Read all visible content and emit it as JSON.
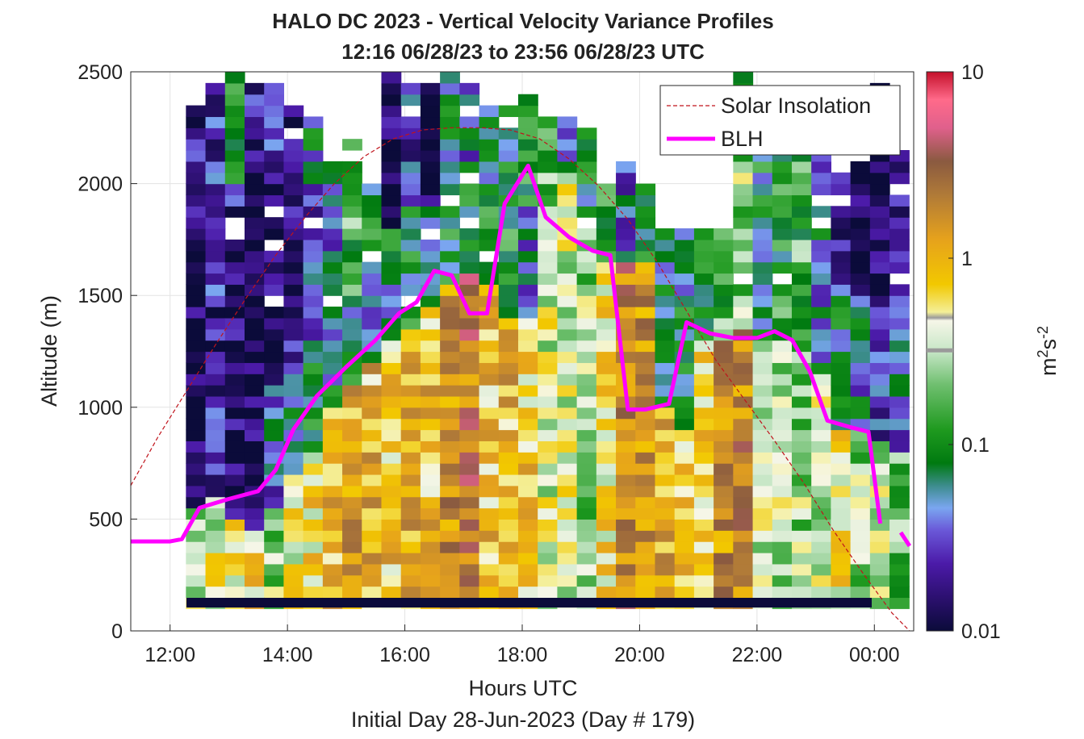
{
  "chart_data": {
    "type": "heatmap",
    "title": "HALO DC 2023 - Vertical Velocity Variance Profiles",
    "subtitle": "12:16 06/28/23 to 23:56 06/28/23  UTC",
    "xlabel": "Hours UTC",
    "ylabel": "Altitude (m)",
    "footnote": "Initial Day 28-Jun-2023 (Day # 179)",
    "xlim": [
      11.33,
      24.67
    ],
    "ylim": [
      0,
      2500
    ],
    "x_tick_values": [
      12,
      14,
      16,
      18,
      20,
      22,
      24
    ],
    "x_tick_labels": [
      "12:00",
      "14:00",
      "16:00",
      "18:00",
      "20:00",
      "22:00",
      "00:00"
    ],
    "y_ticks": [
      0,
      500,
      1000,
      1500,
      2000,
      2500
    ],
    "grid": true,
    "legend_position": "top-right",
    "colorbar": {
      "scale": "log",
      "range": [
        0.01,
        10
      ],
      "tick_values": [
        0.01,
        0.1,
        1,
        10
      ],
      "tick_labels": [
        "0.01",
        "0.1",
        "1",
        "10"
      ],
      "label_base": "m",
      "label_sup1": "2",
      "label_mid": "s",
      "label_sup2": "-2",
      "marker_value": 0.32
    },
    "heatmap_profiles": {
      "time_start": 12.27,
      "time_step": 0.333,
      "alt_bottom": 100,
      "alt_step": 50,
      "comment_levels": "per-column variance profile: [upper limit m, value m2 s-2] segments from bottom",
      "columns": [
        {
          "top": 2350,
          "segments": [
            [
              550,
              0.3
            ],
            [
              1800,
              0.012
            ],
            [
              2350,
              0.02
            ]
          ]
        },
        {
          "top": 2450,
          "segments": [
            [
              600,
              0.4
            ],
            [
              1000,
              0.02
            ],
            [
              1500,
              0.018
            ],
            [
              2450,
              0.022
            ]
          ]
        },
        {
          "top": 2500,
          "segments": [
            [
              500,
              0.6
            ],
            [
              1500,
              0.013
            ],
            [
              2000,
              0.02
            ],
            [
              2500,
              0.08
            ]
          ]
        },
        {
          "top": 2450,
          "segments": [
            [
              450,
              0.7
            ],
            [
              1000,
              0.015
            ],
            [
              2000,
              0.012
            ],
            [
              2450,
              0.02
            ]
          ]
        },
        {
          "top": 2450,
          "segments": [
            [
              550,
              0.25
            ],
            [
              1100,
              0.04
            ],
            [
              2100,
              0.015
            ],
            [
              2450,
              0.025
            ]
          ]
        },
        {
          "top": 2350,
          "segments": [
            [
              700,
              0.5
            ],
            [
              1200,
              0.05
            ],
            [
              1900,
              0.02
            ],
            [
              2350,
              0.012
            ]
          ]
        },
        {
          "top": 2300,
          "segments": [
            [
              800,
              0.6
            ],
            [
              1300,
              0.08
            ],
            [
              2000,
              0.03
            ],
            [
              2300,
              0.06
            ]
          ]
        },
        {
          "top": 2100,
          "segments": [
            [
              1000,
              0.9
            ],
            [
              1400,
              0.06
            ],
            [
              2100,
              0.05
            ]
          ]
        },
        {
          "top": 2200,
          "segments": [
            [
              1100,
              1.2
            ],
            [
              1500,
              0.08
            ],
            [
              2200,
              0.15
            ]
          ]
        },
        {
          "top": 2000,
          "segments": [
            [
              1200,
              1.0
            ],
            [
              1600,
              0.06
            ],
            [
              2000,
              0.1
            ]
          ]
        },
        {
          "top": 2500,
          "segments": [
            [
              1300,
              0.8
            ],
            [
              1800,
              0.07
            ],
            [
              2500,
              0.015
            ]
          ]
        },
        {
          "top": 2450,
          "segments": [
            [
              1350,
              1.1
            ],
            [
              1900,
              0.08
            ],
            [
              2450,
              0.03
            ]
          ]
        },
        {
          "top": 2450,
          "segments": [
            [
              1450,
              0.9
            ],
            [
              1900,
              0.05
            ],
            [
              2450,
              0.012
            ]
          ]
        },
        {
          "top": 2500,
          "segments": [
            [
              1550,
              1.5
            ],
            [
              2000,
              0.1
            ],
            [
              2500,
              0.06
            ]
          ]
        },
        {
          "top": 2450,
          "segments": [
            [
              1600,
              2.2
            ],
            [
              2100,
              0.08
            ],
            [
              2450,
              0.05
            ]
          ]
        },
        {
          "top": 2400,
          "segments": [
            [
              1550,
              0.8
            ],
            [
              2000,
              0.12
            ],
            [
              2400,
              0.08
            ]
          ]
        },
        {
          "top": 2350,
          "segments": [
            [
              1400,
              1.0
            ],
            [
              2000,
              0.1
            ],
            [
              2350,
              0.09
            ]
          ]
        },
        {
          "top": 2400,
          "segments": [
            [
              1400,
              0.7
            ],
            [
              1900,
              0.04
            ],
            [
              2400,
              0.1
            ]
          ]
        },
        {
          "top": 2300,
          "segments": [
            [
              1900,
              0.35
            ],
            [
              2300,
              0.2
            ]
          ]
        },
        {
          "top": 2350,
          "segments": [
            [
              2050,
              0.35
            ],
            [
              2350,
              0.06
            ]
          ]
        },
        {
          "top": 2250,
          "segments": [
            [
              1800,
              0.25
            ],
            [
              2250,
              0.08
            ]
          ]
        },
        {
          "top": 2000,
          "segments": [
            [
              1650,
              0.6
            ],
            [
              2000,
              0.1
            ]
          ]
        },
        {
          "top": 2100,
          "segments": [
            [
              1650,
              2.0
            ],
            [
              2100,
              0.04
            ]
          ]
        },
        {
          "top": 2000,
          "segments": [
            [
              1650,
              1.5
            ],
            [
              2000,
              0.08
            ]
          ]
        },
        {
          "top": 1800,
          "segments": [
            [
              1000,
              1.0
            ],
            [
              1800,
              0.08
            ]
          ]
        },
        {
          "top": 1800,
          "segments": [
            [
              900,
              0.8
            ],
            [
              1800,
              0.07
            ]
          ]
        },
        {
          "top": 1800,
          "segments": [
            [
              1300,
              0.6
            ],
            [
              1800,
              0.1
            ]
          ]
        },
        {
          "top": 1800,
          "segments": [
            [
              1300,
              1.5
            ],
            [
              1800,
              0.15
            ]
          ]
        },
        {
          "top": 2500,
          "segments": [
            [
              1350,
              1.8
            ],
            [
              2100,
              0.25
            ],
            [
              2500,
              0.1
            ]
          ]
        },
        {
          "top": 2200,
          "segments": [
            [
              1300,
              0.4
            ],
            [
              2200,
              0.08
            ]
          ]
        },
        {
          "top": 2200,
          "segments": [
            [
              1300,
              0.3
            ],
            [
              2200,
              0.12
            ]
          ]
        },
        {
          "top": 2200,
          "segments": [
            [
              1250,
              0.25
            ],
            [
              2200,
              0.15
            ]
          ]
        },
        {
          "top": 2200,
          "segments": [
            [
              1150,
              0.35
            ],
            [
              2200,
              0.05
            ]
          ]
        },
        {
          "top": 2100,
          "segments": [
            [
              900,
              0.5
            ],
            [
              1500,
              0.08
            ],
            [
              2100,
              0.02
            ]
          ]
        },
        {
          "top": 2100,
          "segments": [
            [
              900,
              0.25
            ],
            [
              1500,
              0.05
            ],
            [
              2100,
              0.015
            ]
          ]
        },
        {
          "top": 2450,
          "segments": [
            [
              850,
              0.3
            ],
            [
              1500,
              0.03
            ],
            [
              2450,
              0.012
            ]
          ]
        },
        {
          "top": 2150,
          "segments": [
            [
              800,
              0.2
            ],
            [
              1500,
              0.04
            ],
            [
              2150,
              0.02
            ]
          ]
        }
      ]
    },
    "series": [
      {
        "name": "Solar Insolation",
        "x": [
          11.33,
          11.8,
          12.3,
          12.8,
          13.3,
          13.8,
          14.3,
          14.8,
          15.3,
          15.8,
          16.3,
          16.8,
          17.3,
          17.8,
          18.3,
          18.8,
          19.3,
          19.8,
          20.3,
          20.8,
          21.3,
          21.8,
          22.3,
          22.8,
          23.3,
          23.8,
          24.3,
          24.6
        ],
        "y": [
          650,
          870,
          1080,
          1290,
          1490,
          1680,
          1850,
          2000,
          2120,
          2200,
          2240,
          2250,
          2250,
          2240,
          2200,
          2110,
          1990,
          1840,
          1650,
          1430,
          1210,
          1030,
          850,
          660,
          450,
          260,
          80,
          0
        ]
      },
      {
        "name": "BLH",
        "x": [
          11.33,
          12.0,
          12.2,
          12.5,
          13.0,
          13.5,
          13.8,
          14.1,
          14.5,
          15.0,
          15.5,
          15.9,
          16.2,
          16.5,
          16.8,
          17.1,
          17.4,
          17.7,
          18.1,
          18.4,
          18.8,
          19.2,
          19.5,
          19.8,
          20.1,
          20.5,
          20.8,
          21.2,
          21.6,
          22.0,
          22.3,
          22.6,
          22.9,
          23.2,
          23.6,
          23.9,
          24.1
        ],
        "y": [
          400,
          400,
          410,
          550,
          590,
          625,
          720,
          900,
          1050,
          1180,
          1300,
          1420,
          1470,
          1610,
          1590,
          1420,
          1420,
          1910,
          2080,
          1850,
          1760,
          1700,
          1680,
          990,
          990,
          1015,
          1380,
          1330,
          1310,
          1310,
          1340,
          1300,
          1160,
          940,
          910,
          890,
          480
        ]
      },
      {
        "name": "BLH-tail",
        "x": [
          24.45,
          24.6
        ],
        "y": [
          440,
          380
        ]
      }
    ]
  }
}
